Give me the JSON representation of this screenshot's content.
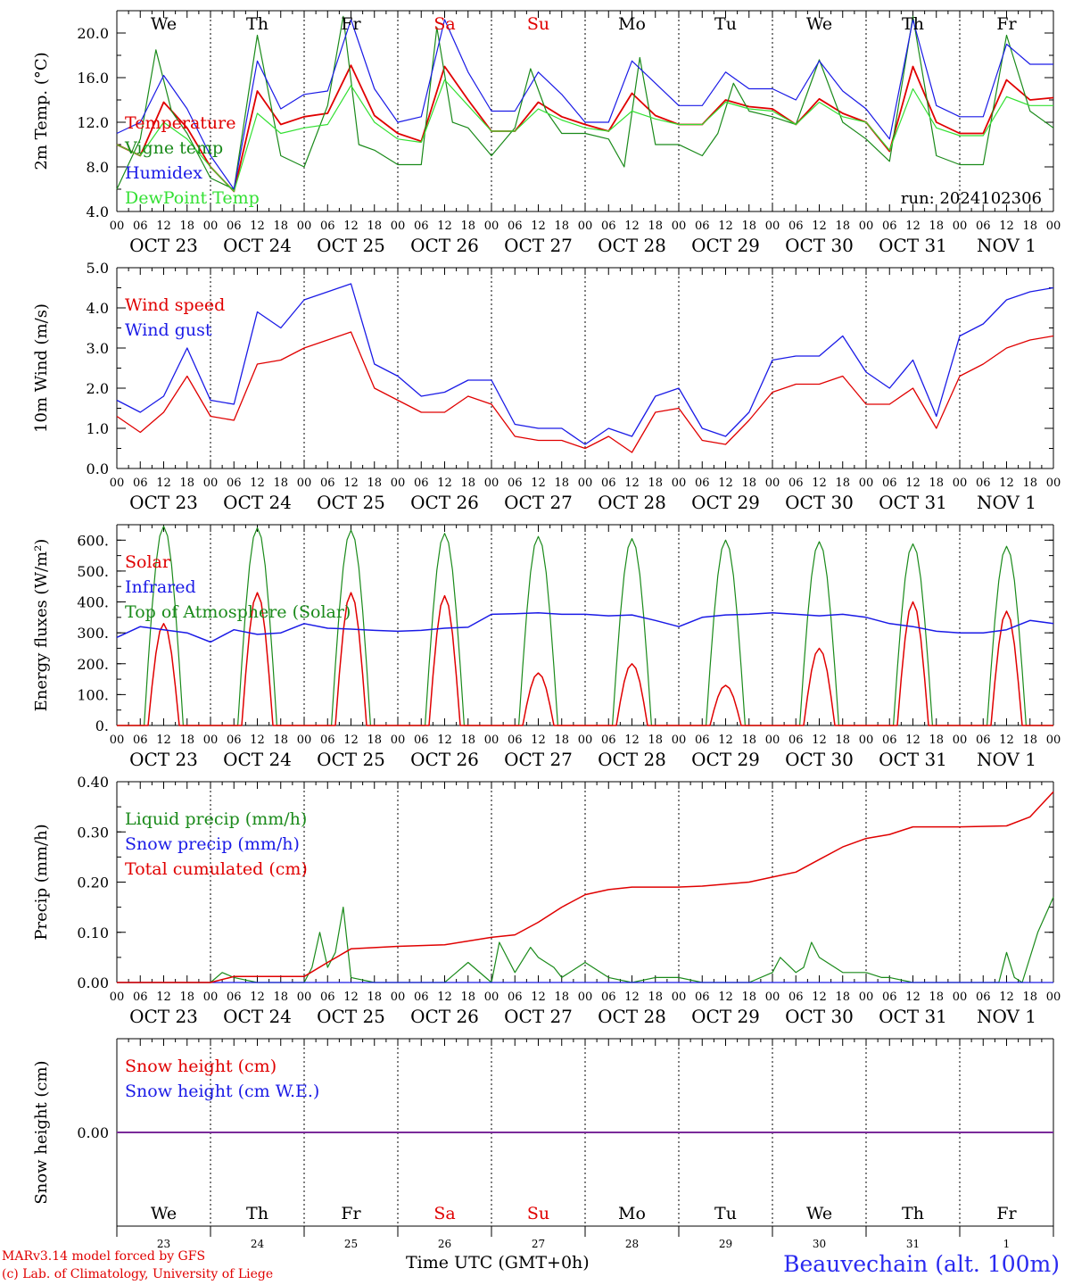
{
  "footer": {
    "credit_line_1": "MARv3.14 model forced by GFS",
    "credit_line_2": "(c) Lab. of Climatology, University of Liege",
    "time_axis_label": "Time UTC (GMT+0h)",
    "station": "Beauvechain (alt. 100m)"
  },
  "colors": {
    "red": "#e00000",
    "green": "#1a8a1a",
    "blue": "#1a1ae6",
    "lime": "#33e033",
    "purple": "#7a2a9a",
    "black": "#000000",
    "weekend": "#e00000"
  },
  "chart_data": [
    {
      "type": "line",
      "id": "temp",
      "ylabel": "2m Temp. (°C)",
      "ylim": [
        4.0,
        22.0
      ],
      "yticks": [
        4.0,
        8.0,
        12.0,
        16.0,
        20.0
      ],
      "ytick_labels": [
        "4.0",
        "8.0",
        "12.0",
        "16.0",
        "20.0"
      ],
      "weekday_labels": [
        "We",
        "Th",
        "Fr",
        "Sa",
        "Su",
        "Mo",
        "Tu",
        "We",
        "Th",
        "Fr"
      ],
      "weekend_days": [
        "Sa",
        "Su"
      ],
      "run_label": "run: 2024102306",
      "x_hours_labels": [
        "00",
        "06",
        "12",
        "18"
      ],
      "day_labels": [
        "OCT 23",
        "OCT 24",
        "OCT 25",
        "OCT 26",
        "OCT 27",
        "OCT 28",
        "OCT 29",
        "OCT 30",
        "OCT 31",
        "NOV 1"
      ],
      "series": [
        {
          "name": "Temperature",
          "color": "red",
          "x": [
            0,
            6,
            12,
            18,
            24,
            30,
            36,
            42,
            48,
            54,
            60,
            66,
            72,
            78,
            84,
            90,
            96,
            102,
            108,
            114,
            120,
            126,
            132,
            138,
            144,
            150,
            156,
            162,
            168,
            174,
            180,
            186,
            192,
            198,
            204,
            210,
            216,
            222,
            228,
            234,
            240
          ],
          "y": [
            10.0,
            9.0,
            13.8,
            11.5,
            8.0,
            5.8,
            14.8,
            11.8,
            12.5,
            12.8,
            17.1,
            12.6,
            11.0,
            10.3,
            17.0,
            14.0,
            11.2,
            11.2,
            13.8,
            12.5,
            11.8,
            11.2,
            14.6,
            12.6,
            11.8,
            11.8,
            14.0,
            13.4,
            13.2,
            11.8,
            14.1,
            12.8,
            12.0,
            9.4,
            17.0,
            12.0,
            11.0,
            11.0,
            15.8,
            14.0,
            14.2
          ]
        },
        {
          "name": "Vigne temp",
          "color": "green",
          "x": [
            0,
            6,
            10,
            14,
            18,
            24,
            30,
            36,
            42,
            48,
            54,
            58,
            62,
            66,
            72,
            78,
            82,
            86,
            90,
            96,
            102,
            106,
            110,
            114,
            120,
            126,
            130,
            134,
            138,
            144,
            150,
            154,
            158,
            162,
            168,
            174,
            180,
            186,
            192,
            198,
            204,
            210,
            216,
            222,
            228,
            234,
            240
          ],
          "y": [
            6.0,
            10.5,
            18.5,
            13.0,
            11.0,
            7.0,
            6.0,
            19.8,
            9.0,
            8.0,
            13.5,
            21.5,
            10.0,
            9.5,
            8.2,
            8.2,
            20.5,
            12.0,
            11.5,
            9.0,
            11.5,
            16.8,
            13.0,
            11.0,
            11.0,
            10.5,
            8.0,
            17.8,
            10.0,
            10.0,
            9.0,
            11.0,
            15.5,
            13.0,
            12.5,
            11.8,
            17.6,
            12.0,
            10.5,
            8.5,
            21.5,
            9.0,
            8.2,
            8.2,
            19.8,
            13.0,
            11.5
          ]
        },
        {
          "name": "Humidex",
          "color": "blue",
          "x": [
            0,
            6,
            12,
            18,
            24,
            30,
            36,
            42,
            48,
            54,
            60,
            66,
            72,
            78,
            84,
            90,
            96,
            102,
            108,
            114,
            120,
            126,
            132,
            138,
            144,
            150,
            156,
            162,
            168,
            174,
            180,
            186,
            192,
            198,
            204,
            210,
            216,
            222,
            228,
            234,
            240
          ],
          "y": [
            11.0,
            12.0,
            16.2,
            13.2,
            9.0,
            6.0,
            17.5,
            13.2,
            14.5,
            14.8,
            21.2,
            15.0,
            12.0,
            12.5,
            21.2,
            16.5,
            13.0,
            13.0,
            16.5,
            14.5,
            12.0,
            12.0,
            17.5,
            15.5,
            13.5,
            13.5,
            16.5,
            15.0,
            15.0,
            14.0,
            17.5,
            14.8,
            13.2,
            10.5,
            21.2,
            13.5,
            12.5,
            12.5,
            19.0,
            17.2,
            17.2
          ]
        },
        {
          "name": "DewPoint Temp",
          "color": "lime",
          "x": [
            0,
            6,
            12,
            18,
            24,
            30,
            36,
            42,
            48,
            54,
            60,
            66,
            72,
            78,
            84,
            90,
            96,
            102,
            108,
            114,
            120,
            126,
            132,
            138,
            144,
            150,
            156,
            162,
            168,
            174,
            180,
            186,
            192,
            198,
            204,
            210,
            216,
            222,
            228,
            234,
            240
          ],
          "y": [
            10.0,
            9.0,
            12.0,
            10.5,
            8.0,
            5.8,
            12.8,
            11.0,
            11.5,
            11.8,
            15.3,
            12.0,
            10.5,
            10.2,
            15.8,
            13.5,
            11.2,
            11.2,
            13.2,
            12.2,
            11.5,
            11.2,
            13.0,
            12.3,
            11.8,
            11.8,
            13.8,
            13.2,
            13.0,
            11.8,
            13.8,
            12.5,
            12.0,
            9.5,
            15.0,
            11.5,
            10.8,
            10.8,
            14.3,
            13.5,
            13.5
          ]
        }
      ]
    },
    {
      "type": "line",
      "id": "wind",
      "ylabel": "10m Wind (m/s)",
      "ylim": [
        0.0,
        5.0
      ],
      "yticks": [
        0.0,
        1.0,
        2.0,
        3.0,
        4.0,
        5.0
      ],
      "ytick_labels": [
        "0.0",
        "1.0",
        "2.0",
        "3.0",
        "4.0",
        "5.0"
      ],
      "x_hours_labels": [
        "00",
        "06",
        "12",
        "18"
      ],
      "day_labels": [
        "OCT 23",
        "OCT 24",
        "OCT 25",
        "OCT 26",
        "OCT 27",
        "OCT 28",
        "OCT 29",
        "OCT 30",
        "OCT 31",
        "NOV 1"
      ],
      "series": [
        {
          "name": "Wind speed",
          "color": "red",
          "x": [
            0,
            6,
            12,
            18,
            24,
            30,
            36,
            42,
            48,
            54,
            60,
            66,
            72,
            78,
            84,
            90,
            96,
            102,
            108,
            114,
            120,
            126,
            132,
            138,
            144,
            150,
            156,
            162,
            168,
            174,
            180,
            186,
            192,
            198,
            204,
            210,
            216,
            222,
            228,
            234,
            240
          ],
          "y": [
            1.3,
            0.9,
            1.4,
            2.3,
            1.3,
            1.2,
            2.6,
            2.7,
            3.0,
            3.2,
            3.4,
            2.0,
            1.7,
            1.4,
            1.4,
            1.8,
            1.6,
            0.8,
            0.7,
            0.7,
            0.5,
            0.8,
            0.4,
            1.4,
            1.5,
            0.7,
            0.6,
            1.2,
            1.9,
            2.1,
            2.1,
            2.3,
            1.6,
            1.6,
            2.0,
            1.0,
            2.3,
            2.6,
            3.0,
            3.2,
            3.3
          ]
        },
        {
          "name": "Wind gust",
          "color": "blue",
          "x": [
            0,
            6,
            12,
            18,
            24,
            30,
            36,
            42,
            48,
            54,
            60,
            66,
            72,
            78,
            84,
            90,
            96,
            102,
            108,
            114,
            120,
            126,
            132,
            138,
            144,
            150,
            156,
            162,
            168,
            174,
            180,
            186,
            192,
            198,
            204,
            210,
            216,
            222,
            228,
            234,
            240
          ],
          "y": [
            1.7,
            1.4,
            1.8,
            3.0,
            1.7,
            1.6,
            3.9,
            3.5,
            4.2,
            4.4,
            4.6,
            2.6,
            2.3,
            1.8,
            1.9,
            2.2,
            2.2,
            1.1,
            1.0,
            1.0,
            0.6,
            1.0,
            0.8,
            1.8,
            2.0,
            1.0,
            0.8,
            1.4,
            2.7,
            2.8,
            2.8,
            3.3,
            2.4,
            2.0,
            2.7,
            1.3,
            3.3,
            3.6,
            4.2,
            4.4,
            4.5
          ]
        }
      ]
    },
    {
      "type": "line",
      "id": "energy",
      "ylabel": "Energy fluxes (W/m²)",
      "ylim": [
        0,
        650
      ],
      "yticks": [
        0,
        100,
        200,
        300,
        400,
        500,
        600
      ],
      "ytick_labels": [
        "0.",
        "100.",
        "200.",
        "300.",
        "400.",
        "500.",
        "600."
      ],
      "x_hours_labels": [
        "00",
        "06",
        "12",
        "18"
      ],
      "day_labels": [
        "OCT 23",
        "OCT 24",
        "OCT 25",
        "OCT 26",
        "OCT 27",
        "OCT 28",
        "OCT 29",
        "OCT 30",
        "OCT 31",
        "NOV 1"
      ],
      "series": [
        {
          "name": "Solar",
          "color": "red",
          "peaks": [
            330,
            430,
            430,
            420,
            170,
            200,
            130,
            250,
            400,
            370
          ]
        },
        {
          "name": "Infrared",
          "color": "blue",
          "x": [
            0,
            6,
            12,
            18,
            24,
            30,
            36,
            42,
            48,
            54,
            60,
            66,
            72,
            78,
            84,
            90,
            96,
            102,
            108,
            114,
            120,
            126,
            132,
            138,
            144,
            150,
            156,
            162,
            168,
            174,
            180,
            186,
            192,
            198,
            204,
            210,
            216,
            222,
            228,
            234,
            240
          ],
          "y": [
            285,
            320,
            310,
            300,
            270,
            310,
            295,
            300,
            330,
            315,
            312,
            308,
            305,
            308,
            315,
            318,
            360,
            362,
            365,
            360,
            360,
            355,
            358,
            340,
            320,
            350,
            358,
            360,
            365,
            360,
            355,
            360,
            350,
            330,
            320,
            305,
            300,
            300,
            310,
            340,
            330
          ]
        },
        {
          "name": "Top of Atmosphere (Solar)",
          "color": "green",
          "peaks": [
            645,
            640,
            632,
            622,
            612,
            605,
            600,
            595,
            588,
            580
          ]
        }
      ]
    },
    {
      "type": "line",
      "id": "precip",
      "ylabel": "Precip (mm/h)",
      "ylim": [
        0.0,
        0.4
      ],
      "yticks": [
        0.0,
        0.1,
        0.2,
        0.3,
        0.4
      ],
      "ytick_labels": [
        "0.00",
        "0.10",
        "0.20",
        "0.30",
        "0.40"
      ],
      "x_hours_labels": [
        "00",
        "06",
        "12",
        "18"
      ],
      "day_labels": [
        "OCT 23",
        "OCT 24",
        "OCT 25",
        "OCT 26",
        "OCT 27",
        "OCT 28",
        "OCT 29",
        "OCT 30",
        "OCT 31",
        "NOV 1"
      ],
      "series": [
        {
          "name": "Liquid precip (mm/h)",
          "color": "green",
          "x": [
            0,
            24,
            27,
            30,
            36,
            48,
            50,
            52,
            54,
            56,
            58,
            60,
            66,
            84,
            90,
            96,
            98,
            102,
            106,
            108,
            112,
            114,
            120,
            126,
            132,
            138,
            144,
            150,
            162,
            168,
            170,
            174,
            176,
            178,
            180,
            186,
            192,
            196,
            198,
            204,
            216,
            226,
            228,
            230,
            232,
            236,
            240
          ],
          "y": [
            0,
            0,
            0.02,
            0.01,
            0,
            0,
            0.03,
            0.1,
            0.03,
            0.06,
            0.15,
            0.01,
            0,
            0,
            0.04,
            0,
            0.08,
            0.02,
            0.07,
            0.05,
            0.03,
            0.01,
            0.04,
            0.01,
            0,
            0.01,
            0.01,
            0,
            0,
            0.02,
            0.05,
            0.02,
            0.03,
            0.08,
            0.05,
            0.02,
            0.02,
            0.01,
            0.01,
            0,
            0,
            0,
            0.06,
            0.01,
            0,
            0.1,
            0.17
          ]
        },
        {
          "name": "Snow precip (mm/h)",
          "color": "blue",
          "x": [
            0,
            240
          ],
          "y": [
            0,
            0
          ]
        },
        {
          "name": "Total cumulated (cm)",
          "color": "red",
          "x": [
            0,
            24,
            30,
            48,
            54,
            60,
            72,
            84,
            96,
            102,
            108,
            114,
            120,
            126,
            132,
            144,
            150,
            162,
            168,
            174,
            180,
            186,
            192,
            198,
            204,
            216,
            228,
            234,
            240
          ],
          "y": [
            0,
            0,
            0.012,
            0.012,
            0.04,
            0.067,
            0.072,
            0.075,
            0.09,
            0.095,
            0.12,
            0.15,
            0.175,
            0.185,
            0.19,
            0.19,
            0.192,
            0.2,
            0.21,
            0.22,
            0.245,
            0.27,
            0.287,
            0.295,
            0.31,
            0.31,
            0.312,
            0.33,
            0.38
          ]
        }
      ]
    },
    {
      "type": "line",
      "id": "snow",
      "ylabel": "Snow height (cm)",
      "ylim": [
        -1.0,
        1.0
      ],
      "yticks": [
        0.0
      ],
      "ytick_labels": [
        "0.00"
      ],
      "weekday_labels": [
        "We",
        "Th",
        "Fr",
        "Sa",
        "Su",
        "Mo",
        "Tu",
        "We",
        "Th",
        "Fr"
      ],
      "weekend_days": [
        "Sa",
        "Su"
      ],
      "date_numbers": [
        "23",
        "24",
        "25",
        "26",
        "27",
        "28",
        "29",
        "30",
        "31",
        "1"
      ],
      "series": [
        {
          "name": "Snow height (cm)",
          "color": "red",
          "x": [
            0,
            240
          ],
          "y": [
            0,
            0
          ]
        },
        {
          "name": "Snow height (cm W.E.)",
          "color": "blue",
          "x": [
            0,
            240
          ],
          "y": [
            0,
            0
          ]
        }
      ]
    }
  ]
}
